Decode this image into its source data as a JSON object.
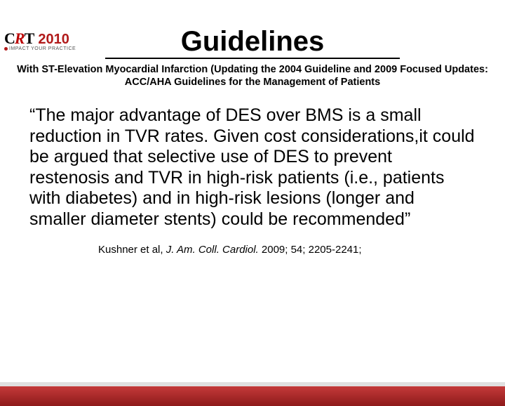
{
  "logo": {
    "c": "C",
    "r": "R",
    "t": "T",
    "year": "2010",
    "tagline": "IMPACT YOUR PRACTICE"
  },
  "title": "Guidelines",
  "subtitle": "With ST-Elevation Myocardial Infarction (Updating the 2004 Guideline and 2009 Focused Updates: ACC/AHA Guidelines for the Management of Patients",
  "quote": "“The major advantage of DES over BMS is a small reduction in TVR rates. Given cost considerations,it could be argued that selective use of DES to prevent restenosis and TVR in high-risk patients (i.e., patients with diabetes) and in high-risk lesions (longer and smaller diameter stents) could be recommended”",
  "citation": {
    "authors": "Kushner et al, ",
    "journal": "J. Am. Coll. Cardiol. ",
    "ref": "2009; 54; 2205-2241;"
  },
  "colors": {
    "accent": "#b11a1a",
    "footer_top": "#c43a3a",
    "footer_bottom": "#8e1a1a",
    "footer_border": "#e0e0e0",
    "text": "#000000",
    "background": "#ffffff"
  }
}
